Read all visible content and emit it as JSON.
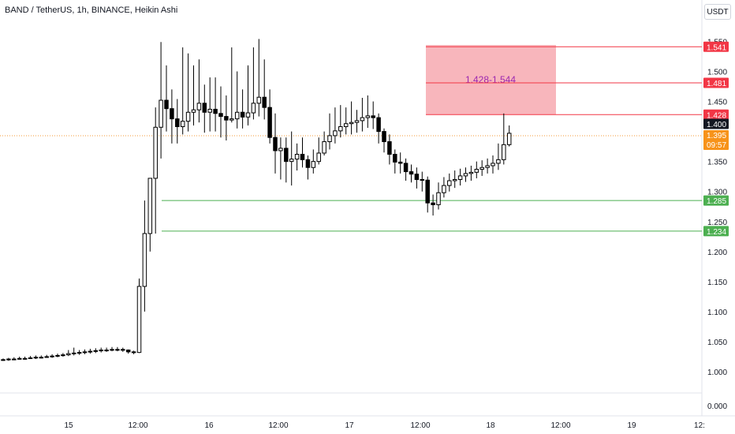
{
  "header": {
    "title": "BAND / TetherUS, 1h, BINANCE, Heikin Ashi",
    "currency": "USDT"
  },
  "chart_data": {
    "type": "candlestick",
    "symbol": "BAND / TetherUS",
    "interval": "1h",
    "exchange": "BINANCE",
    "style": "Heikin Ashi",
    "y_ticks": [
      "1.550",
      "1.500",
      "1.450",
      "1.350",
      "1.300",
      "1.250",
      "1.200",
      "1.150",
      "1.100",
      "1.050",
      "1.000",
      "0.000"
    ],
    "x_ticks": [
      "15",
      "12:00",
      "16",
      "12:00",
      "17",
      "12:00",
      "18",
      "12:00",
      "19",
      "12:"
    ],
    "ylim": [
      0.0,
      1.56
    ],
    "last_price": "1.395",
    "countdown": "09:57",
    "crosshair_price": "1.400",
    "zone": {
      "label": "1.428-1.544",
      "low": 1.428,
      "high": 1.544
    },
    "levels": [
      {
        "value": 1.541,
        "label": "1.541",
        "color": "#f23645"
      },
      {
        "value": 1.481,
        "label": "1.481",
        "color": "#f23645"
      },
      {
        "value": 1.428,
        "label": "1.428",
        "color": "#f23645"
      },
      {
        "value": 1.285,
        "label": "1.285",
        "color": "#4caf50"
      },
      {
        "value": 1.234,
        "label": "1.234",
        "color": "#4caf50"
      }
    ],
    "candles": [
      [
        1.02,
        1.02,
        1.022,
        1.018
      ],
      [
        1.02,
        1.021,
        1.023,
        1.018
      ],
      [
        1.021,
        1.021,
        1.024,
        1.019
      ],
      [
        1.021,
        1.022,
        1.025,
        1.02
      ],
      [
        1.022,
        1.022,
        1.025,
        1.02
      ],
      [
        1.022,
        1.023,
        1.026,
        1.021
      ],
      [
        1.023,
        1.024,
        1.027,
        1.021
      ],
      [
        1.024,
        1.024,
        1.027,
        1.022
      ],
      [
        1.024,
        1.025,
        1.028,
        1.023
      ],
      [
        1.025,
        1.026,
        1.029,
        1.023
      ],
      [
        1.026,
        1.027,
        1.03,
        1.024
      ],
      [
        1.027,
        1.028,
        1.031,
        1.025
      ],
      [
        1.028,
        1.03,
        1.036,
        1.026
      ],
      [
        1.03,
        1.031,
        1.04,
        1.027
      ],
      [
        1.031,
        1.032,
        1.036,
        1.028
      ],
      [
        1.032,
        1.033,
        1.037,
        1.029
      ],
      [
        1.033,
        1.034,
        1.038,
        1.03
      ],
      [
        1.034,
        1.035,
        1.039,
        1.031
      ],
      [
        1.035,
        1.036,
        1.04,
        1.032
      ],
      [
        1.036,
        1.036,
        1.04,
        1.033
      ],
      [
        1.036,
        1.037,
        1.041,
        1.034
      ],
      [
        1.037,
        1.037,
        1.041,
        1.034
      ],
      [
        1.037,
        1.036,
        1.04,
        1.033
      ],
      [
        1.036,
        1.033,
        1.037,
        1.03
      ],
      [
        1.033,
        1.032,
        1.035,
        1.029
      ],
      [
        1.032,
        1.142,
        1.155,
        1.031
      ],
      [
        1.142,
        1.23,
        1.285,
        1.1
      ],
      [
        1.23,
        1.322,
        1.29,
        1.2
      ],
      [
        1.322,
        1.407,
        1.44,
        1.23
      ],
      [
        1.407,
        1.452,
        1.549,
        1.355
      ],
      [
        1.452,
        1.438,
        1.51,
        1.4
      ],
      [
        1.438,
        1.421,
        1.47,
        1.38
      ],
      [
        1.421,
        1.408,
        1.454,
        1.38
      ],
      [
        1.408,
        1.417,
        1.54,
        1.395
      ],
      [
        1.417,
        1.432,
        1.53,
        1.4
      ],
      [
        1.432,
        1.436,
        1.51,
        1.41
      ],
      [
        1.436,
        1.447,
        1.52,
        1.415
      ],
      [
        1.447,
        1.432,
        1.478,
        1.398
      ],
      [
        1.432,
        1.437,
        1.49,
        1.4
      ],
      [
        1.437,
        1.43,
        1.49,
        1.4
      ],
      [
        1.43,
        1.425,
        1.475,
        1.39
      ],
      [
        1.425,
        1.419,
        1.46,
        1.385
      ],
      [
        1.419,
        1.421,
        1.54,
        1.415
      ],
      [
        1.421,
        1.432,
        1.5,
        1.405
      ],
      [
        1.432,
        1.424,
        1.47,
        1.405
      ],
      [
        1.424,
        1.431,
        1.51,
        1.41
      ],
      [
        1.431,
        1.447,
        1.54,
        1.42
      ],
      [
        1.447,
        1.457,
        1.554,
        1.425
      ],
      [
        1.457,
        1.44,
        1.52,
        1.42
      ],
      [
        1.44,
        1.39,
        1.47,
        1.38
      ],
      [
        1.39,
        1.368,
        1.43,
        1.33
      ],
      [
        1.368,
        1.372,
        1.39,
        1.32
      ],
      [
        1.372,
        1.35,
        1.39,
        1.315
      ],
      [
        1.35,
        1.354,
        1.4,
        1.31
      ],
      [
        1.354,
        1.362,
        1.38,
        1.335
      ],
      [
        1.362,
        1.353,
        1.39,
        1.34
      ],
      [
        1.353,
        1.34,
        1.36,
        1.32
      ],
      [
        1.34,
        1.35,
        1.37,
        1.33
      ],
      [
        1.35,
        1.364,
        1.39,
        1.345
      ],
      [
        1.364,
        1.383,
        1.4,
        1.36
      ],
      [
        1.383,
        1.393,
        1.43,
        1.37
      ],
      [
        1.393,
        1.401,
        1.44,
        1.38
      ],
      [
        1.401,
        1.408,
        1.444,
        1.39
      ],
      [
        1.408,
        1.413,
        1.44,
        1.395
      ],
      [
        1.413,
        1.415,
        1.45,
        1.395
      ],
      [
        1.415,
        1.418,
        1.436,
        1.398
      ],
      [
        1.418,
        1.423,
        1.456,
        1.4
      ],
      [
        1.423,
        1.426,
        1.46,
        1.406
      ],
      [
        1.426,
        1.423,
        1.45,
        1.404
      ],
      [
        1.423,
        1.4,
        1.43,
        1.38
      ],
      [
        1.4,
        1.383,
        1.405,
        1.365
      ],
      [
        1.383,
        1.362,
        1.395,
        1.345
      ],
      [
        1.362,
        1.349,
        1.37,
        1.33
      ],
      [
        1.349,
        1.347,
        1.365,
        1.33
      ],
      [
        1.347,
        1.333,
        1.355,
        1.318
      ],
      [
        1.333,
        1.329,
        1.345,
        1.315
      ],
      [
        1.329,
        1.32,
        1.34,
        1.305
      ],
      [
        1.32,
        1.319,
        1.333,
        1.3
      ],
      [
        1.319,
        1.281,
        1.325,
        1.265
      ],
      [
        1.281,
        1.278,
        1.295,
        1.26
      ],
      [
        1.278,
        1.298,
        1.315,
        1.27
      ],
      [
        1.298,
        1.31,
        1.324,
        1.29
      ],
      [
        1.31,
        1.318,
        1.33,
        1.3
      ],
      [
        1.318,
        1.32,
        1.335,
        1.306
      ],
      [
        1.32,
        1.326,
        1.338,
        1.31
      ],
      [
        1.326,
        1.33,
        1.34,
        1.316
      ],
      [
        1.33,
        1.332,
        1.343,
        1.318
      ],
      [
        1.332,
        1.337,
        1.35,
        1.322
      ],
      [
        1.337,
        1.34,
        1.352,
        1.326
      ],
      [
        1.34,
        1.343,
        1.355,
        1.33
      ],
      [
        1.343,
        1.347,
        1.36,
        1.33
      ],
      [
        1.347,
        1.353,
        1.38,
        1.336
      ],
      [
        1.353,
        1.378,
        1.43,
        1.345
      ],
      [
        1.378,
        1.397,
        1.41,
        1.375
      ]
    ]
  }
}
